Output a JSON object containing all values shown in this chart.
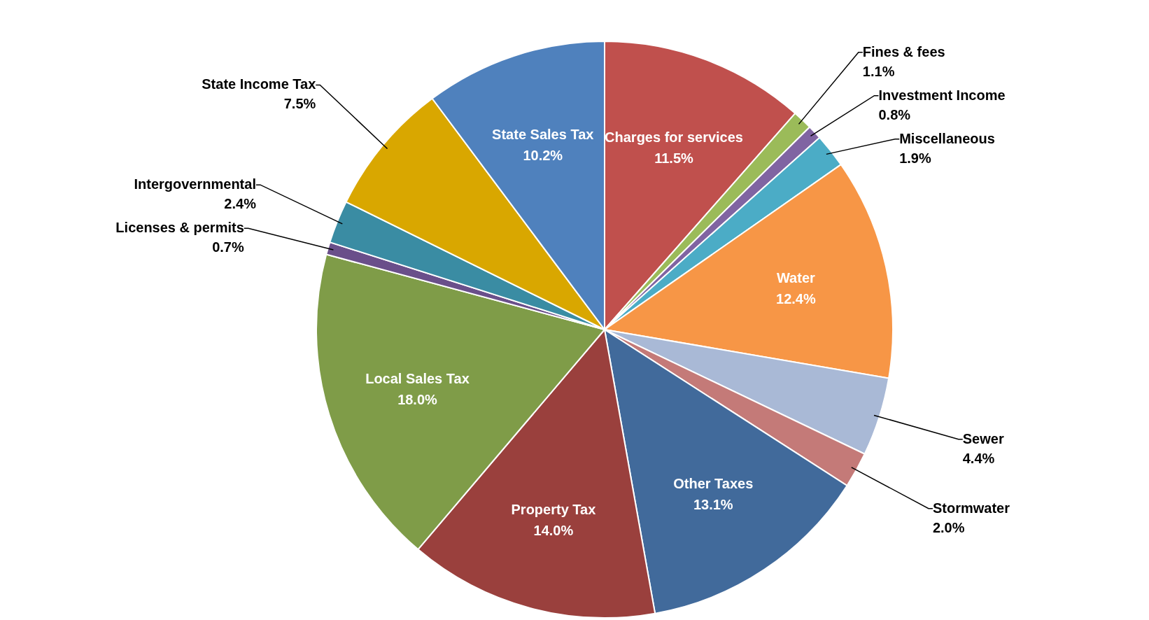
{
  "chart_data": {
    "type": "pie",
    "categories": [
      "Charges for services",
      "Fines & fees",
      "Investment Income",
      "Miscellaneous",
      "Water",
      "Sewer",
      "Stormwater",
      "Other Taxes",
      "Property Tax",
      "Local Sales Tax",
      "Licenses & permits",
      "Intergovernmental",
      "State Income Tax",
      "State Sales Tax"
    ],
    "values": [
      11.5,
      1.1,
      0.8,
      1.9,
      12.4,
      4.4,
      2.0,
      13.1,
      14.0,
      18.0,
      0.7,
      2.4,
      7.5,
      10.2
    ],
    "value_labels": [
      "11.5%",
      "1.1%",
      "0.8%",
      "1.9%",
      "12.4%",
      "4.4%",
      "2.0%",
      "13.1%",
      "14.0%",
      "18.0%",
      "0.7%",
      "2.4%",
      "7.5%",
      "10.2%"
    ],
    "colors": [
      "#c0504d",
      "#9bbb59",
      "#8064a2",
      "#4bacc6",
      "#f79646",
      "#a9b9d6",
      "#c47a78",
      "#416a9b",
      "#9a403d",
      "#7f9c48",
      "#6a4f8a",
      "#3a8ca3",
      "#d9a700",
      "#4f81bd"
    ]
  }
}
